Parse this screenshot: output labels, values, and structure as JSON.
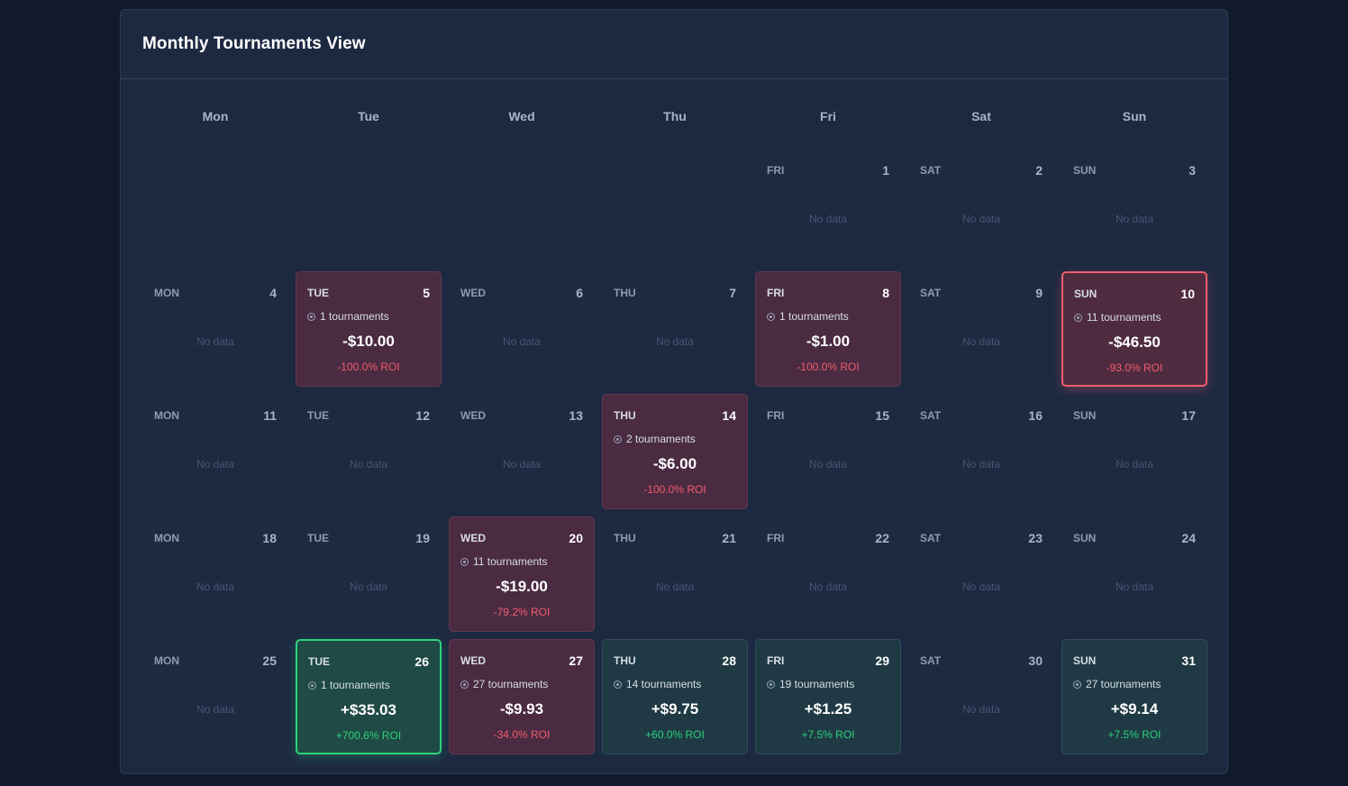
{
  "title": "Monthly Tournaments View",
  "weekdays": [
    "Mon",
    "Tue",
    "Wed",
    "Thu",
    "Fri",
    "Sat",
    "Sun"
  ],
  "no_data_label": "No data",
  "colors": {
    "loss": "#f25d6c",
    "gain": "#2cd27b",
    "icon": "tournament-icon"
  },
  "days": [
    {
      "dow": "FRI",
      "day": "1"
    },
    {
      "dow": "SAT",
      "day": "2"
    },
    {
      "dow": "SUN",
      "day": "3"
    },
    {
      "dow": "MON",
      "day": "4"
    },
    {
      "dow": "TUE",
      "day": "5",
      "tournaments": "1 tournaments",
      "profit": "-$10.00",
      "roi": "-100.0% ROI",
      "status": "loss"
    },
    {
      "dow": "WED",
      "day": "6"
    },
    {
      "dow": "THU",
      "day": "7"
    },
    {
      "dow": "FRI",
      "day": "8",
      "tournaments": "1 tournaments",
      "profit": "-$1.00",
      "roi": "-100.0% ROI",
      "status": "loss"
    },
    {
      "dow": "SAT",
      "day": "9"
    },
    {
      "dow": "SUN",
      "day": "10",
      "tournaments": "11 tournaments",
      "profit": "-$46.50",
      "roi": "-93.0% ROI",
      "status": "worst"
    },
    {
      "dow": "MON",
      "day": "11"
    },
    {
      "dow": "TUE",
      "day": "12"
    },
    {
      "dow": "WED",
      "day": "13"
    },
    {
      "dow": "THU",
      "day": "14",
      "tournaments": "2 tournaments",
      "profit": "-$6.00",
      "roi": "-100.0% ROI",
      "status": "loss"
    },
    {
      "dow": "FRI",
      "day": "15"
    },
    {
      "dow": "SAT",
      "day": "16"
    },
    {
      "dow": "SUN",
      "day": "17"
    },
    {
      "dow": "MON",
      "day": "18"
    },
    {
      "dow": "TUE",
      "day": "19"
    },
    {
      "dow": "WED",
      "day": "20",
      "tournaments": "11 tournaments",
      "profit": "-$19.00",
      "roi": "-79.2% ROI",
      "status": "loss"
    },
    {
      "dow": "THU",
      "day": "21"
    },
    {
      "dow": "FRI",
      "day": "22"
    },
    {
      "dow": "SAT",
      "day": "23"
    },
    {
      "dow": "SUN",
      "day": "24"
    },
    {
      "dow": "MON",
      "day": "25"
    },
    {
      "dow": "TUE",
      "day": "26",
      "tournaments": "1 tournaments",
      "profit": "+$35.03",
      "roi": "+700.6% ROI",
      "status": "best"
    },
    {
      "dow": "WED",
      "day": "27",
      "tournaments": "27 tournaments",
      "profit": "-$9.93",
      "roi": "-34.0% ROI",
      "status": "loss"
    },
    {
      "dow": "THU",
      "day": "28",
      "tournaments": "14 tournaments",
      "profit": "+$9.75",
      "roi": "+60.0% ROI",
      "status": "gain"
    },
    {
      "dow": "FRI",
      "day": "29",
      "tournaments": "19 tournaments",
      "profit": "+$1.25",
      "roi": "+7.5% ROI",
      "status": "gain"
    },
    {
      "dow": "SAT",
      "day": "30"
    },
    {
      "dow": "SUN",
      "day": "31",
      "tournaments": "27 tournaments",
      "profit": "+$9.14",
      "roi": "+7.5% ROI",
      "status": "gain"
    }
  ]
}
